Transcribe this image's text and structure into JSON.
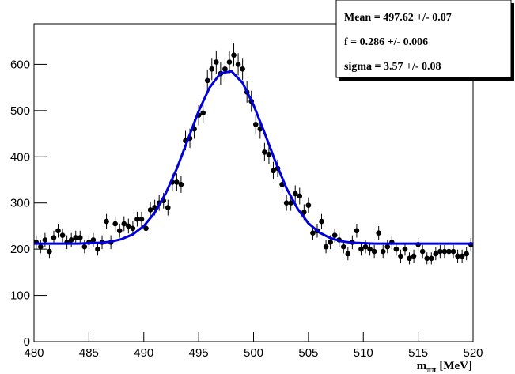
{
  "chart_data": {
    "type": "scatter",
    "x_label": {
      "main": "m",
      "subscript": "ππ",
      "unit": "[MeV]"
    },
    "stats": [
      "Mean =  497.62 +/- 0.07",
      "f =  0.286 +/- 0.006",
      "sigma =  3.57 +/- 0.08"
    ],
    "xlim": [
      480,
      520
    ],
    "xticks": [
      480,
      485,
      490,
      495,
      500,
      505,
      510,
      515,
      520
    ],
    "ylim": [
      0,
      688
    ],
    "yticks": [
      0,
      100,
      200,
      300,
      400,
      500,
      600
    ],
    "series": [
      {
        "color": "#000000",
        "x": [
          480.2,
          480.6,
          481.0,
          481.4,
          481.8,
          482.2,
          482.6,
          483.0,
          483.4,
          483.8,
          484.2,
          484.6,
          485.0,
          485.4,
          485.8,
          486.2,
          486.6,
          487.0,
          487.4,
          487.8,
          488.2,
          488.6,
          489.0,
          489.4,
          489.8,
          490.2,
          490.6,
          491.0,
          491.4,
          491.8,
          492.2,
          492.6,
          493.0,
          493.4,
          493.8,
          494.2,
          494.6,
          495.0,
          495.4,
          495.8,
          496.2,
          496.6,
          497.0,
          497.4,
          497.8,
          498.2,
          498.6,
          499.0,
          499.4,
          499.8,
          500.2,
          500.6,
          501.0,
          501.4,
          501.8,
          502.2,
          502.6,
          503.0,
          503.4,
          503.8,
          504.2,
          504.6,
          505.0,
          505.4,
          505.8,
          506.2,
          506.6,
          507.0,
          507.4,
          507.8,
          508.2,
          508.6,
          509.0,
          509.4,
          509.8,
          510.2,
          510.6,
          511.0,
          511.4,
          511.8,
          512.2,
          512.6,
          513.0,
          513.4,
          513.8,
          514.2,
          514.6,
          515.0,
          515.4,
          515.8,
          516.2,
          516.6,
          517.0,
          517.4,
          517.8,
          518.2,
          518.6,
          519.0,
          519.4,
          519.8
        ],
        "values": [
          215,
          205,
          220,
          195,
          225,
          240,
          230,
          215,
          220,
          225,
          225,
          205,
          215,
          220,
          200,
          215,
          260,
          215,
          255,
          240,
          255,
          250,
          245,
          265,
          265,
          245,
          285,
          290,
          300,
          305,
          290,
          345,
          345,
          340,
          435,
          440,
          460,
          490,
          495,
          565,
          590,
          605,
          580,
          590,
          605,
          620,
          600,
          590,
          540,
          520,
          470,
          460,
          410,
          405,
          370,
          375,
          340,
          300,
          300,
          320,
          315,
          280,
          295,
          235,
          240,
          260,
          205,
          215,
          230,
          220,
          205,
          190,
          215,
          240,
          200,
          205,
          200,
          195,
          235,
          195,
          205,
          215,
          200,
          185,
          200,
          180,
          185,
          210,
          195,
          180,
          180,
          190,
          195,
          195,
          195,
          195,
          185,
          185,
          190,
          210
        ],
        "errors": [
          15,
          14,
          15,
          14,
          15,
          15,
          15,
          15,
          15,
          15,
          15,
          14,
          15,
          15,
          14,
          15,
          16,
          15,
          16,
          15,
          16,
          16,
          16,
          16,
          16,
          16,
          17,
          17,
          17,
          17,
          17,
          19,
          19,
          18,
          21,
          21,
          21,
          22,
          22,
          24,
          24,
          25,
          24,
          24,
          25,
          25,
          24,
          24,
          23,
          23,
          22,
          21,
          20,
          20,
          19,
          19,
          18,
          17,
          17,
          18,
          18,
          17,
          17,
          15,
          15,
          16,
          14,
          15,
          15,
          15,
          14,
          14,
          15,
          15,
          14,
          14,
          14,
          14,
          15,
          14,
          14,
          15,
          14,
          14,
          14,
          13,
          14,
          14,
          14,
          13,
          13,
          14,
          14,
          14,
          14,
          14,
          14,
          14,
          14,
          14
        ]
      },
      {
        "type": "line",
        "color": "#0000dd",
        "x": [
          480,
          481,
          482,
          483,
          484,
          485,
          486,
          487,
          488,
          489,
          490,
          491,
          492,
          493,
          494,
          495,
          496,
          497,
          498,
          499,
          500,
          501,
          502,
          503,
          504,
          505,
          506,
          507,
          508,
          509,
          510,
          511,
          512,
          513,
          514,
          515,
          516,
          517,
          518,
          519,
          520
        ],
        "values": [
          212,
          212,
          212,
          212,
          212,
          213,
          214,
          216,
          222,
          232,
          250,
          279,
          321,
          374,
          436,
          499,
          550,
          581,
          585,
          560,
          512,
          452,
          389,
          332,
          288,
          256,
          236,
          224,
          217,
          214,
          213,
          212,
          212,
          212,
          212,
          212,
          212,
          212,
          212,
          212,
          212
        ]
      }
    ]
  }
}
